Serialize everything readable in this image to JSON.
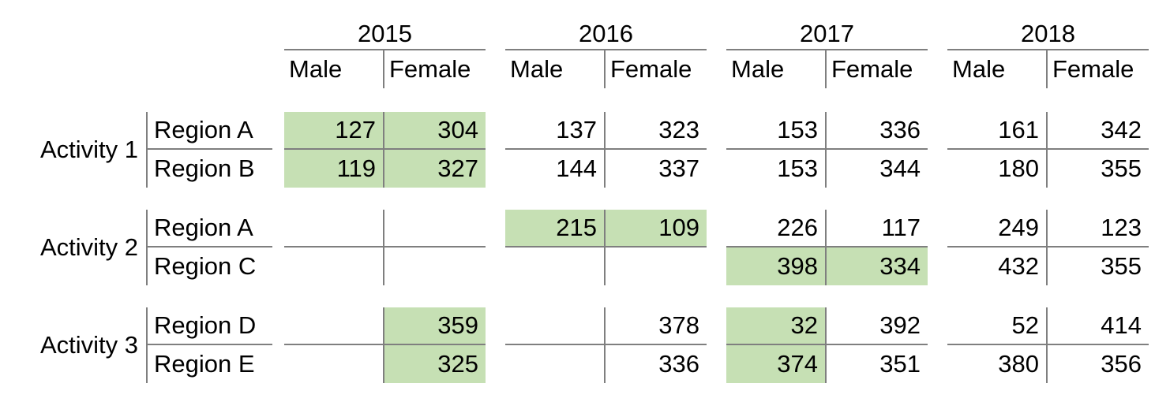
{
  "chart_data": {
    "type": "table",
    "title": "",
    "years": [
      "2015",
      "2016",
      "2017",
      "2018"
    ],
    "sub_columns": [
      "Male",
      "Female"
    ],
    "highlight_color": "#c6e0b4",
    "gridline_color": "#7f7f7f",
    "groups": [
      {
        "activity": "Activity 1",
        "rows": [
          {
            "region": "Region A",
            "values": [
              "127",
              "304",
              "137",
              "323",
              "153",
              "336",
              "161",
              "342"
            ],
            "highlights": [
              true,
              true,
              false,
              false,
              false,
              false,
              false,
              false
            ]
          },
          {
            "region": "Region B",
            "values": [
              "119",
              "327",
              "144",
              "337",
              "153",
              "344",
              "180",
              "355"
            ],
            "highlights": [
              true,
              true,
              false,
              false,
              false,
              false,
              false,
              false
            ]
          }
        ]
      },
      {
        "activity": "Activity 2",
        "rows": [
          {
            "region": "Region A",
            "values": [
              "",
              "",
              "215",
              "109",
              "226",
              "117",
              "249",
              "123"
            ],
            "highlights": [
              false,
              false,
              true,
              true,
              false,
              false,
              false,
              false
            ]
          },
          {
            "region": "Region C",
            "values": [
              "",
              "",
              "",
              "",
              "398",
              "334",
              "432",
              "355"
            ],
            "highlights": [
              false,
              false,
              false,
              false,
              true,
              true,
              false,
              false
            ]
          }
        ]
      },
      {
        "activity": "Activity 3",
        "rows": [
          {
            "region": "Region D",
            "values": [
              "",
              "359",
              "",
              "378",
              "32",
              "392",
              "52",
              "414"
            ],
            "highlights": [
              false,
              true,
              false,
              false,
              true,
              false,
              false,
              false
            ]
          },
          {
            "region": "Region E",
            "values": [
              "",
              "325",
              "",
              "336",
              "374",
              "351",
              "380",
              "356"
            ],
            "highlights": [
              false,
              true,
              false,
              false,
              true,
              false,
              false,
              false
            ]
          }
        ]
      }
    ]
  }
}
